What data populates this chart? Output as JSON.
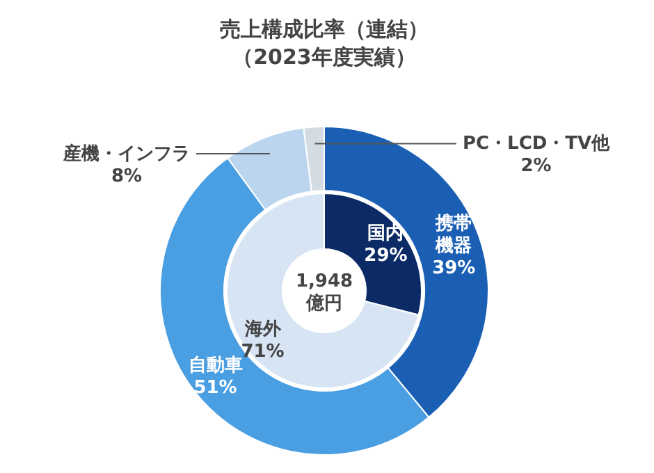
{
  "chart_data": [
    {
      "type": "donut",
      "title": "売上構成比率（連結）",
      "subtitle": "（2023年度実績）",
      "categories": [
        "携帯機器",
        "自動車",
        "産機・インフラ",
        "PC・LCD・TV他"
      ],
      "values": [
        39,
        51,
        8,
        2
      ],
      "value_labels": [
        "39%",
        "51%",
        "8%",
        "2%"
      ],
      "colors": [
        "#1a5fb4",
        "#4a9ee2",
        "#bcd5ee",
        "#d3dbe3"
      ],
      "annotations": [
        "1,948",
        "億円"
      ]
    },
    {
      "type": "donut",
      "categories": [
        "国内",
        "海外"
      ],
      "values": [
        29,
        71
      ],
      "value_labels": [
        "29%",
        "71%"
      ],
      "colors": [
        "#0b2a66",
        "#d6e4f3"
      ]
    }
  ]
}
